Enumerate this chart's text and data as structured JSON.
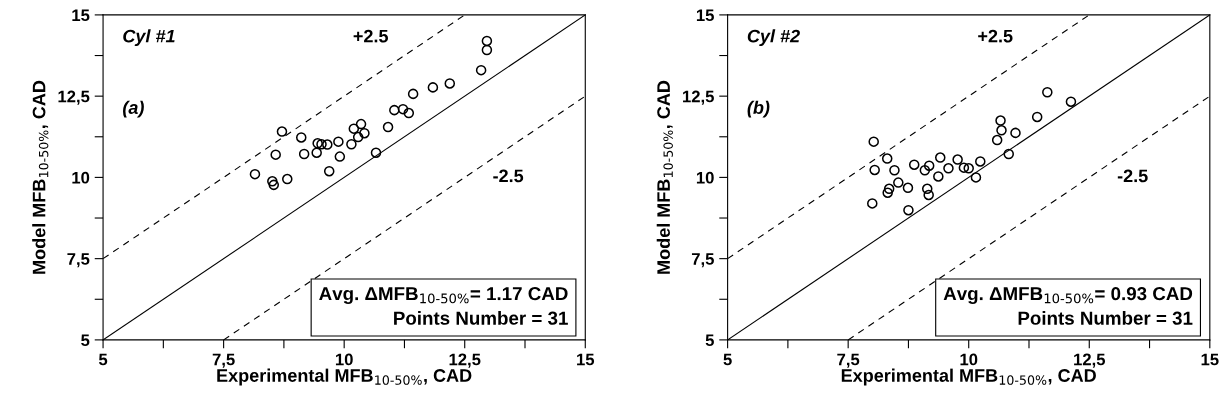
{
  "chart_data": [
    {
      "type": "scatter",
      "xlabel": "Experimental MFB$_{10-50%}$, CAD",
      "ylabel": "Model MFB$_{10-50%}$, CAD",
      "xlim": [
        5,
        15
      ],
      "ylim": [
        5,
        15
      ],
      "xticks": [
        5,
        {
          "value": 6.25,
          "label": null
        },
        {
          "value": 7.5,
          "label": "7,5"
        },
        {
          "value": 8.75,
          "label": null
        },
        10,
        {
          "value": 11.25,
          "label": null
        },
        {
          "value": 12.5,
          "label": "12,5"
        },
        {
          "value": 13.75,
          "label": null
        },
        15
      ],
      "yticks": [
        5,
        {
          "value": 6.25,
          "label": null
        },
        {
          "value": 7.5,
          "label": "7,5"
        },
        {
          "value": 8.75,
          "label": null
        },
        10,
        {
          "value": 11.25,
          "label": null
        },
        {
          "value": 12.5,
          "label": "12,5"
        },
        {
          "value": 13.75,
          "label": null
        },
        15
      ],
      "grid": false,
      "series": [
        {
          "marker": "circle",
          "color": "#000000",
          "x": [
            8.15,
            8.51,
            8.54,
            8.82,
            8.58,
            8.71,
            9.11,
            9.17,
            9.43,
            9.45,
            9.53,
            9.65,
            9.88,
            9.69,
            9.91,
            10.15,
            10.2,
            10.29,
            10.35,
            10.42,
            10.66,
            10.91,
            11.04,
            11.22,
            11.34,
            11.43,
            11.84,
            12.19,
            12.84,
            12.96,
            12.96
          ],
          "values": [
            10.1,
            9.88,
            9.77,
            9.95,
            10.7,
            11.41,
            11.23,
            10.72,
            10.76,
            11.05,
            11.02,
            11.01,
            11.1,
            10.19,
            10.64,
            11.02,
            11.5,
            11.24,
            11.64,
            11.36,
            10.76,
            11.55,
            12.07,
            12.1,
            11.98,
            12.57,
            12.77,
            12.89,
            13.3,
            13.92,
            14.2
          ]
        },
        {
          "type": "line",
          "color": "#000000",
          "line_style": "solid",
          "x": [
            5,
            15
          ],
          "values": [
            5,
            15
          ]
        },
        {
          "type": "line",
          "color": "#000000",
          "line_style": "dashed",
          "x": [
            5,
            12.5
          ],
          "values": [
            7.5,
            15
          ]
        },
        {
          "type": "line",
          "color": "#000000",
          "line_style": "dashed",
          "x": [
            7.5,
            15
          ],
          "values": [
            5,
            12.5
          ]
        }
      ],
      "annotations": [
        "Cyl #1",
        "(a)",
        "Avg. ΔMFB$_{10-50%}$= 1.17 CAD\nPoints Number = 31",
        "+2.5",
        "-2.5"
      ]
    },
    {
      "type": "scatter",
      "xlabel": "Experimental MFB$_{10-50%}$, CAD",
      "ylabel": "Model MFB$_{10-50%}$, CAD",
      "xlim": [
        5,
        15
      ],
      "ylim": [
        5,
        15
      ],
      "xticks": [
        5,
        {
          "value": 6.25,
          "label": null
        },
        {
          "value": 7.5,
          "label": "7,5"
        },
        {
          "value": 8.75,
          "label": null
        },
        10,
        {
          "value": 11.25,
          "label": null
        },
        {
          "value": 12.5,
          "label": "12,5"
        },
        {
          "value": 13.75,
          "label": null
        },
        15
      ],
      "yticks": [
        5,
        {
          "value": 6.25,
          "label": null
        },
        {
          "value": 7.5,
          "label": "7,5"
        },
        {
          "value": 8.75,
          "label": null
        },
        10,
        {
          "value": 11.25,
          "label": null
        },
        {
          "value": 12.5,
          "label": "12,5"
        },
        {
          "value": 13.75,
          "label": null
        },
        15
      ],
      "grid": false,
      "series": [
        {
          "marker": "circle",
          "color": "#000000",
          "x": [
            8.03,
            8.05,
            8.0,
            8.31,
            8.46,
            8.32,
            8.35,
            8.54,
            8.74,
            8.75,
            8.87,
            9.09,
            9.18,
            9.14,
            9.17,
            9.37,
            9.41,
            9.58,
            9.77,
            9.9,
            10.0,
            10.15,
            10.24,
            10.59,
            10.66,
            10.68,
            10.83,
            10.97,
            11.42,
            11.63,
            12.12
          ],
          "values": [
            11.1,
            10.23,
            9.2,
            10.58,
            10.22,
            9.53,
            9.65,
            9.84,
            9.68,
            8.99,
            10.39,
            10.22,
            10.36,
            9.65,
            9.46,
            10.03,
            10.61,
            10.28,
            10.55,
            10.3,
            10.28,
            10.0,
            10.49,
            11.15,
            11.75,
            11.45,
            10.72,
            11.37,
            11.86,
            12.62,
            12.33
          ]
        },
        {
          "type": "line",
          "color": "#000000",
          "line_style": "solid",
          "x": [
            5,
            15
          ],
          "values": [
            5,
            15
          ]
        },
        {
          "type": "line",
          "color": "#000000",
          "line_style": "dashed",
          "x": [
            5,
            12.5
          ],
          "values": [
            7.5,
            15
          ]
        },
        {
          "type": "line",
          "color": "#000000",
          "line_style": "dashed",
          "x": [
            7.5,
            15
          ],
          "values": [
            5,
            12.5
          ]
        }
      ],
      "annotations": [
        "Cyl #2",
        "(b)",
        "Avg. ΔMFB$_{10-50%}$= 0.93 CAD\nPoints Number = 31",
        "+2.5",
        "-2.5"
      ]
    }
  ]
}
